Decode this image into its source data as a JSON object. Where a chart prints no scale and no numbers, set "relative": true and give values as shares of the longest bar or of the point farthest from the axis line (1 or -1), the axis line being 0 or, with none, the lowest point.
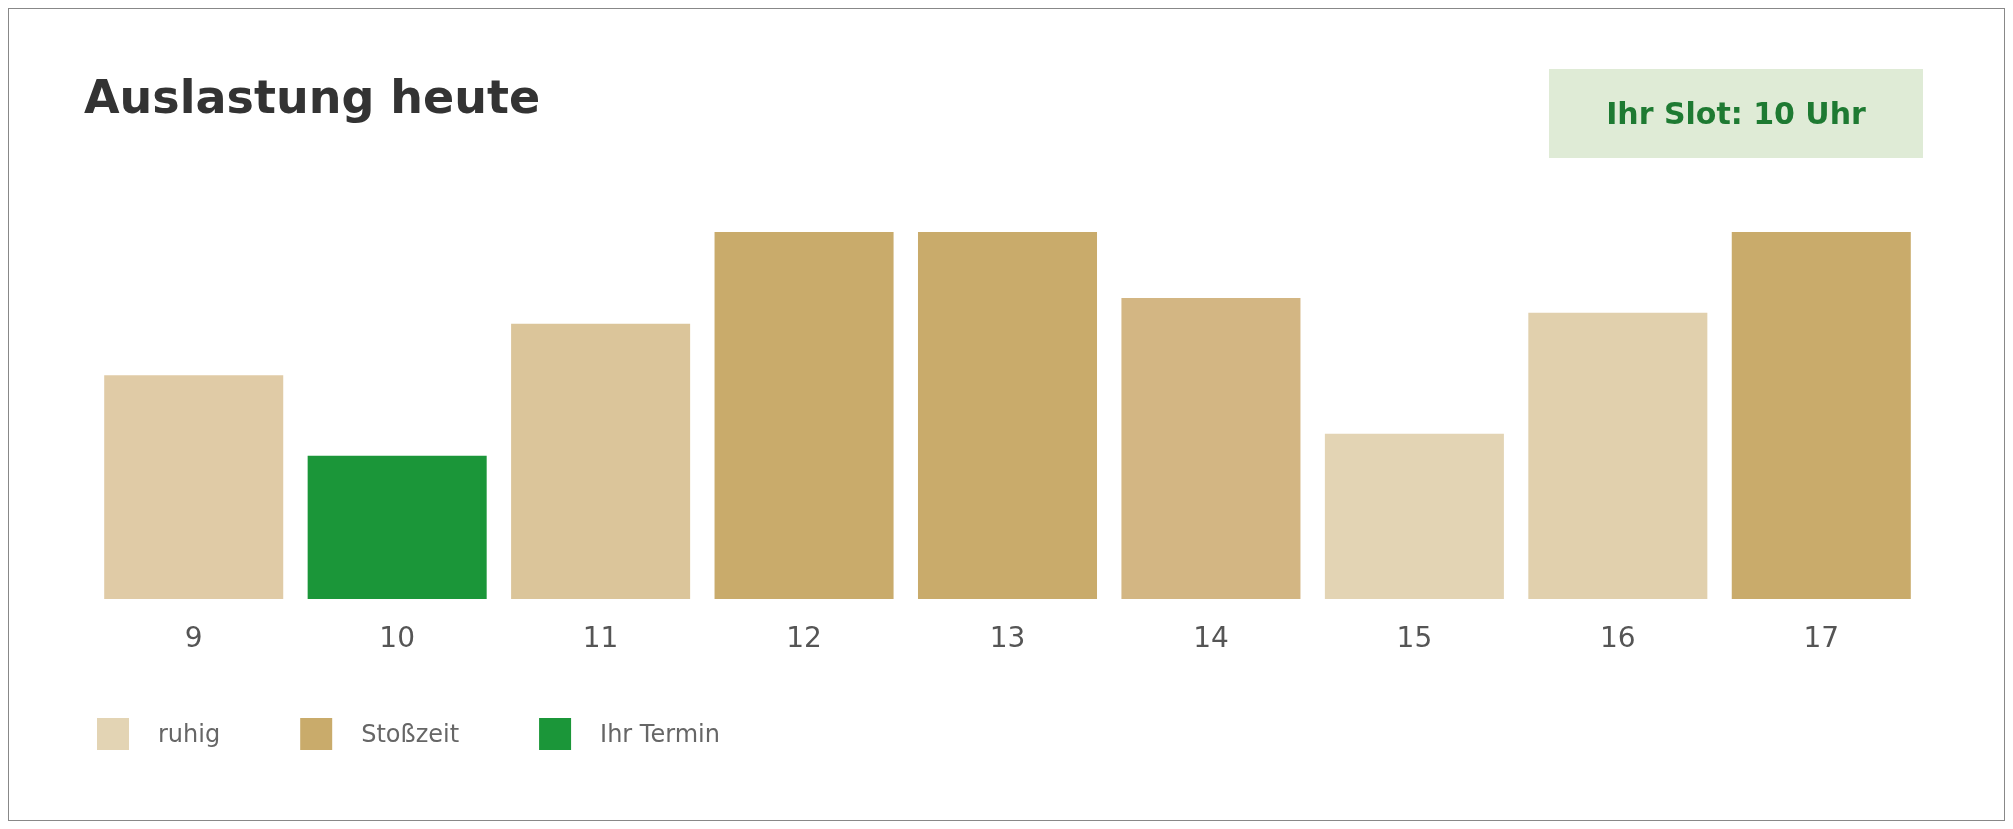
{
  "chart_data": {
    "type": "bar",
    "title": "Auslastung heute",
    "categories": [
      "9",
      "10",
      "11",
      "12",
      "13",
      "14",
      "15",
      "16",
      "17"
    ],
    "relative": true,
    "stacked": true,
    "grid": false,
    "legend": "bottom left",
    "annotations": [
      "Ihr Slot: 10 Uhr"
    ],
    "series": [
      {
        "name": "ruhig",
        "color": "#e3d4b4",
        "values": [
          0.61,
          null,
          0.75,
          null,
          null,
          null,
          0.45,
          0.78,
          null
        ],
        "colors": [
          "#e0cba6",
          null,
          "#dbc59a",
          null,
          null,
          null,
          "#e3d4b4",
          "#e1d0ad",
          null
        ]
      },
      {
        "name": "Stoßzeit",
        "color": "#c9ab6b",
        "values": [
          null,
          null,
          null,
          1,
          1,
          0.82,
          null,
          null,
          1
        ],
        "colors": [
          null,
          null,
          null,
          "#c9ab6b",
          "#c9ab6b",
          "#d3b683",
          null,
          null,
          "#c9ab6b"
        ]
      },
      {
        "name": "Ihr Termin",
        "color": "#1b9639",
        "values": [
          null,
          0.39,
          null,
          null,
          null,
          null,
          null,
          null,
          null
        ],
        "colors": [
          null,
          "#1b9639",
          null,
          null,
          null,
          null,
          null,
          null,
          null
        ]
      }
    ]
  }
}
